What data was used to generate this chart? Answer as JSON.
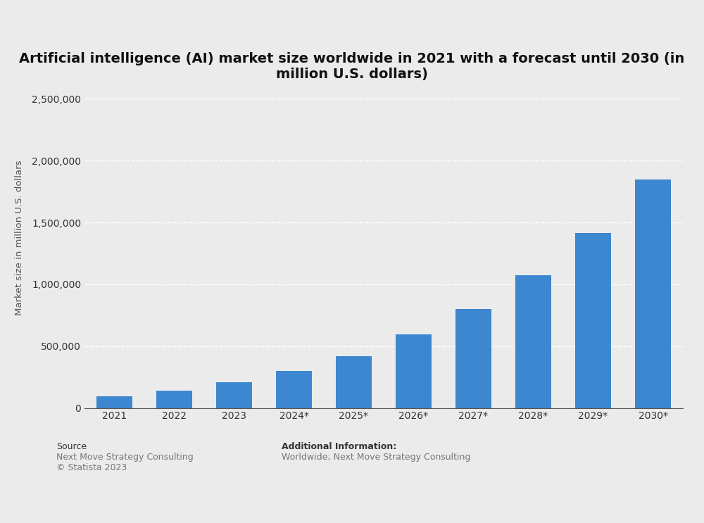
{
  "title": "Artificial intelligence (AI) market size worldwide in 2021 with a forecast until 2030 (in\nmillion U.S. dollars)",
  "categories": [
    "2021",
    "2022",
    "2023",
    "2024*",
    "2025*",
    "2026*",
    "2027*",
    "2028*",
    "2029*",
    "2030*"
  ],
  "values": [
    93500,
    142300,
    207900,
    298900,
    421500,
    594000,
    798900,
    1075000,
    1415000,
    1847000
  ],
  "bar_color": "#3d87d0",
  "ylabel": "Market size in million U.S. dollars",
  "ylim": [
    0,
    2750000
  ],
  "yticks": [
    0,
    500000,
    1000000,
    1500000,
    2000000,
    2500000
  ],
  "background_color": "#ebebeb",
  "plot_background": "#ebebeb",
  "grid_color": "#ffffff",
  "title_fontsize": 14,
  "ylabel_fontsize": 9.5,
  "tick_fontsize": 10,
  "source_label": "Source",
  "source_line1": "Next Move Strategy Consulting",
  "source_line2": "© Statista 2023",
  "additional_info_label": "Additional Information:",
  "additional_info_text": "Worldwide; Next Move Strategy Consulting"
}
